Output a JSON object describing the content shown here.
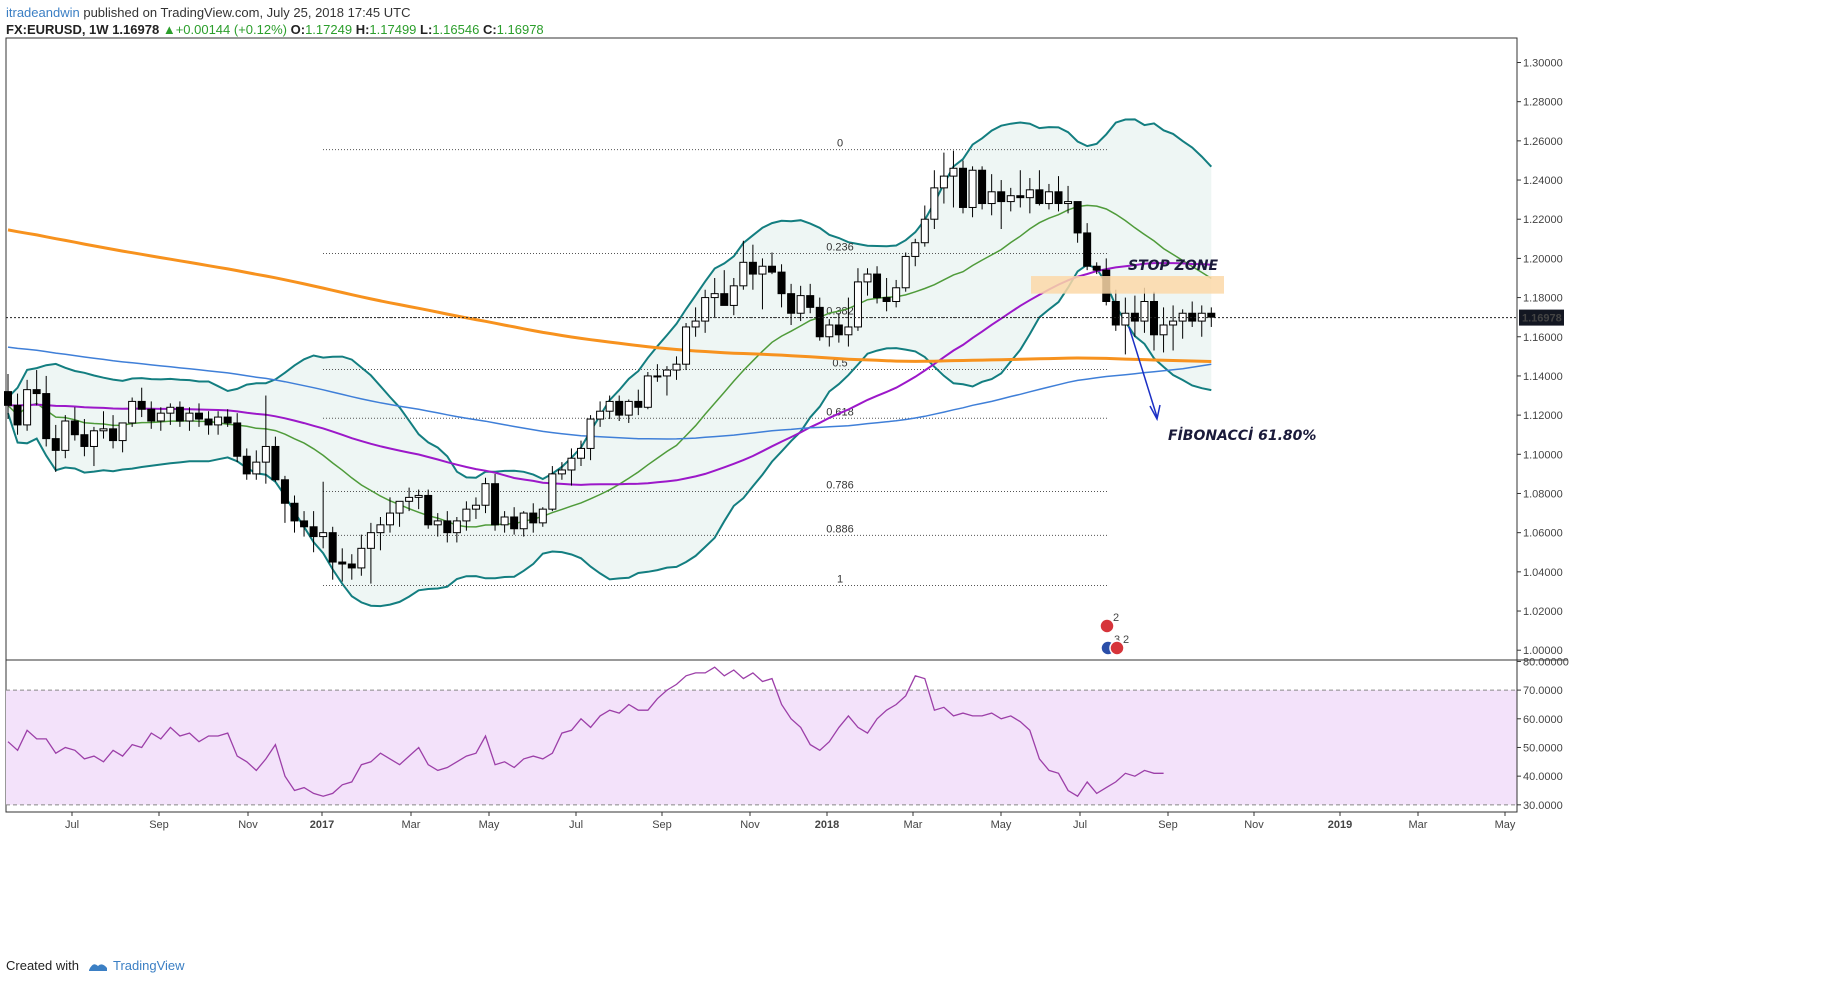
{
  "header": {
    "author": "itradeandwin",
    "published": "published on TradingView.com, July 25, 2018 17:45 UTC",
    "symbol": "FX:EURUSD, 1W",
    "last": "1.16978",
    "change": "+0.00144 (+0.12%)",
    "o_label": "O:",
    "o": "1.17249",
    "h_label": "H:",
    "h": "1.17499",
    "l_label": "L:",
    "l": "1.16546",
    "c_label": "C:",
    "c": "1.16978"
  },
  "footer": {
    "created": "Created with",
    "brand": "TradingView"
  },
  "colors": {
    "bull": "#ffffff",
    "bear": "#000000",
    "bb": "#137e80",
    "bb_fill": "#eef6f4",
    "sma_green": "#4f9b3a",
    "sma_purple": "#9c18c9",
    "sma_blue": "#3f7fd8",
    "sma_orange": "#f7921e",
    "rsi_line": "#9c3fa8",
    "rsi_band": "#f3e2fa",
    "stop_zone": "#fcd8a8",
    "arrow": "#1b2fc4",
    "price_tag": "#131722"
  },
  "chart_data": {
    "type": "candlestick",
    "title": "FX:EURUSD, 1W",
    "price_axis": {
      "ylim": [
        0.995,
        1.3125
      ],
      "ticks": [
        "1.30000",
        "1.28000",
        "1.26000",
        "1.24000",
        "1.22000",
        "1.20000",
        "1.18000",
        "1.16000",
        "1.14000",
        "1.12000",
        "1.10000",
        "1.08000",
        "1.06000",
        "1.04000",
        "1.02000",
        "1.00000"
      ]
    },
    "time_axis": {
      "labels": [
        "Jul",
        "Sep",
        "Nov",
        "2017",
        "Mar",
        "May",
        "Jul",
        "Sep",
        "Nov",
        "2018",
        "Mar",
        "May",
        "Jul",
        "Sep",
        "Nov",
        "2019",
        "Mar",
        "May"
      ]
    },
    "last_price": "1.16978",
    "candles": [
      {
        "o": 1.132,
        "h": 1.141,
        "l": 1.118,
        "c": 1.125
      },
      {
        "o": 1.125,
        "h": 1.131,
        "l": 1.11,
        "c": 1.115
      },
      {
        "o": 1.115,
        "h": 1.138,
        "l": 1.112,
        "c": 1.133
      },
      {
        "o": 1.133,
        "h": 1.143,
        "l": 1.125,
        "c": 1.131
      },
      {
        "o": 1.131,
        "h": 1.14,
        "l": 1.104,
        "c": 1.108
      },
      {
        "o": 1.108,
        "h": 1.115,
        "l": 1.091,
        "c": 1.102
      },
      {
        "o": 1.102,
        "h": 1.12,
        "l": 1.098,
        "c": 1.117
      },
      {
        "o": 1.117,
        "h": 1.124,
        "l": 1.107,
        "c": 1.11
      },
      {
        "o": 1.11,
        "h": 1.118,
        "l": 1.099,
        "c": 1.104
      },
      {
        "o": 1.104,
        "h": 1.114,
        "l": 1.094,
        "c": 1.112
      },
      {
        "o": 1.112,
        "h": 1.122,
        "l": 1.108,
        "c": 1.113
      },
      {
        "o": 1.113,
        "h": 1.12,
        "l": 1.103,
        "c": 1.107
      },
      {
        "o": 1.107,
        "h": 1.116,
        "l": 1.101,
        "c": 1.116
      },
      {
        "o": 1.116,
        "h": 1.129,
        "l": 1.114,
        "c": 1.127
      },
      {
        "o": 1.127,
        "h": 1.134,
        "l": 1.119,
        "c": 1.123
      },
      {
        "o": 1.123,
        "h": 1.127,
        "l": 1.113,
        "c": 1.117
      },
      {
        "o": 1.117,
        "h": 1.124,
        "l": 1.112,
        "c": 1.121
      },
      {
        "o": 1.121,
        "h": 1.126,
        "l": 1.115,
        "c": 1.124
      },
      {
        "o": 1.124,
        "h": 1.127,
        "l": 1.114,
        "c": 1.117
      },
      {
        "o": 1.117,
        "h": 1.124,
        "l": 1.112,
        "c": 1.121
      },
      {
        "o": 1.121,
        "h": 1.126,
        "l": 1.114,
        "c": 1.118
      },
      {
        "o": 1.118,
        "h": 1.122,
        "l": 1.11,
        "c": 1.115
      },
      {
        "o": 1.115,
        "h": 1.122,
        "l": 1.11,
        "c": 1.119
      },
      {
        "o": 1.119,
        "h": 1.123,
        "l": 1.114,
        "c": 1.116
      },
      {
        "o": 1.116,
        "h": 1.121,
        "l": 1.096,
        "c": 1.099
      },
      {
        "o": 1.099,
        "h": 1.103,
        "l": 1.087,
        "c": 1.09
      },
      {
        "o": 1.09,
        "h": 1.102,
        "l": 1.087,
        "c": 1.096
      },
      {
        "o": 1.096,
        "h": 1.13,
        "l": 1.085,
        "c": 1.104
      },
      {
        "o": 1.104,
        "h": 1.109,
        "l": 1.086,
        "c": 1.087
      },
      {
        "o": 1.087,
        "h": 1.089,
        "l": 1.065,
        "c": 1.075
      },
      {
        "o": 1.075,
        "h": 1.079,
        "l": 1.06,
        "c": 1.066
      },
      {
        "o": 1.066,
        "h": 1.071,
        "l": 1.058,
        "c": 1.063
      },
      {
        "o": 1.063,
        "h": 1.071,
        "l": 1.05,
        "c": 1.058
      },
      {
        "o": 1.058,
        "h": 1.086,
        "l": 1.052,
        "c": 1.06
      },
      {
        "o": 1.06,
        "h": 1.063,
        "l": 1.036,
        "c": 1.045
      },
      {
        "o": 1.045,
        "h": 1.052,
        "l": 1.035,
        "c": 1.044
      },
      {
        "o": 1.044,
        "h": 1.049,
        "l": 1.036,
        "c": 1.042
      },
      {
        "o": 1.042,
        "h": 1.059,
        "l": 1.038,
        "c": 1.052
      },
      {
        "o": 1.052,
        "h": 1.065,
        "l": 1.034,
        "c": 1.06
      },
      {
        "o": 1.06,
        "h": 1.068,
        "l": 1.051,
        "c": 1.064
      },
      {
        "o": 1.064,
        "h": 1.078,
        "l": 1.06,
        "c": 1.07
      },
      {
        "o": 1.07,
        "h": 1.076,
        "l": 1.063,
        "c": 1.076
      },
      {
        "o": 1.076,
        "h": 1.083,
        "l": 1.071,
        "c": 1.078
      },
      {
        "o": 1.078,
        "h": 1.082,
        "l": 1.072,
        "c": 1.079
      },
      {
        "o": 1.079,
        "h": 1.082,
        "l": 1.062,
        "c": 1.064
      },
      {
        "o": 1.064,
        "h": 1.07,
        "l": 1.058,
        "c": 1.066
      },
      {
        "o": 1.066,
        "h": 1.071,
        "l": 1.055,
        "c": 1.06
      },
      {
        "o": 1.06,
        "h": 1.068,
        "l": 1.055,
        "c": 1.066
      },
      {
        "o": 1.066,
        "h": 1.076,
        "l": 1.061,
        "c": 1.072
      },
      {
        "o": 1.072,
        "h": 1.078,
        "l": 1.067,
        "c": 1.074
      },
      {
        "o": 1.074,
        "h": 1.088,
        "l": 1.07,
        "c": 1.085
      },
      {
        "o": 1.085,
        "h": 1.09,
        "l": 1.061,
        "c": 1.064
      },
      {
        "o": 1.064,
        "h": 1.071,
        "l": 1.06,
        "c": 1.068
      },
      {
        "o": 1.068,
        "h": 1.073,
        "l": 1.059,
        "c": 1.062
      },
      {
        "o": 1.062,
        "h": 1.071,
        "l": 1.058,
        "c": 1.07
      },
      {
        "o": 1.07,
        "h": 1.075,
        "l": 1.06,
        "c": 1.065
      },
      {
        "o": 1.065,
        "h": 1.073,
        "l": 1.063,
        "c": 1.072
      },
      {
        "o": 1.072,
        "h": 1.094,
        "l": 1.071,
        "c": 1.09
      },
      {
        "o": 1.09,
        "h": 1.096,
        "l": 1.087,
        "c": 1.092
      },
      {
        "o": 1.092,
        "h": 1.103,
        "l": 1.084,
        "c": 1.098
      },
      {
        "o": 1.098,
        "h": 1.107,
        "l": 1.094,
        "c": 1.103
      },
      {
        "o": 1.103,
        "h": 1.12,
        "l": 1.097,
        "c": 1.118
      },
      {
        "o": 1.118,
        "h": 1.127,
        "l": 1.114,
        "c": 1.122
      },
      {
        "o": 1.122,
        "h": 1.13,
        "l": 1.118,
        "c": 1.127
      },
      {
        "o": 1.127,
        "h": 1.13,
        "l": 1.117,
        "c": 1.12
      },
      {
        "o": 1.12,
        "h": 1.128,
        "l": 1.116,
        "c": 1.127
      },
      {
        "o": 1.127,
        "h": 1.133,
        "l": 1.12,
        "c": 1.124
      },
      {
        "o": 1.124,
        "h": 1.142,
        "l": 1.123,
        "c": 1.14
      },
      {
        "o": 1.14,
        "h": 1.146,
        "l": 1.137,
        "c": 1.14
      },
      {
        "o": 1.14,
        "h": 1.145,
        "l": 1.13,
        "c": 1.143
      },
      {
        "o": 1.143,
        "h": 1.15,
        "l": 1.138,
        "c": 1.146
      },
      {
        "o": 1.146,
        "h": 1.167,
        "l": 1.143,
        "c": 1.165
      },
      {
        "o": 1.165,
        "h": 1.175,
        "l": 1.16,
        "c": 1.168
      },
      {
        "o": 1.168,
        "h": 1.184,
        "l": 1.162,
        "c": 1.18
      },
      {
        "o": 1.18,
        "h": 1.19,
        "l": 1.17,
        "c": 1.182
      },
      {
        "o": 1.182,
        "h": 1.194,
        "l": 1.178,
        "c": 1.176
      },
      {
        "o": 1.176,
        "h": 1.19,
        "l": 1.171,
        "c": 1.186
      },
      {
        "o": 1.186,
        "h": 1.209,
        "l": 1.184,
        "c": 1.198
      },
      {
        "o": 1.198,
        "h": 1.207,
        "l": 1.184,
        "c": 1.192
      },
      {
        "o": 1.192,
        "h": 1.2,
        "l": 1.174,
        "c": 1.196
      },
      {
        "o": 1.196,
        "h": 1.203,
        "l": 1.192,
        "c": 1.193
      },
      {
        "o": 1.193,
        "h": 1.197,
        "l": 1.175,
        "c": 1.182
      },
      {
        "o": 1.182,
        "h": 1.187,
        "l": 1.166,
        "c": 1.172
      },
      {
        "o": 1.172,
        "h": 1.186,
        "l": 1.168,
        "c": 1.181
      },
      {
        "o": 1.181,
        "h": 1.187,
        "l": 1.172,
        "c": 1.175
      },
      {
        "o": 1.175,
        "h": 1.18,
        "l": 1.158,
        "c": 1.16
      },
      {
        "o": 1.16,
        "h": 1.169,
        "l": 1.155,
        "c": 1.166
      },
      {
        "o": 1.166,
        "h": 1.172,
        "l": 1.157,
        "c": 1.161
      },
      {
        "o": 1.161,
        "h": 1.18,
        "l": 1.155,
        "c": 1.165
      },
      {
        "o": 1.165,
        "h": 1.195,
        "l": 1.163,
        "c": 1.188
      },
      {
        "o": 1.188,
        "h": 1.195,
        "l": 1.181,
        "c": 1.192
      },
      {
        "o": 1.192,
        "h": 1.196,
        "l": 1.177,
        "c": 1.18
      },
      {
        "o": 1.18,
        "h": 1.19,
        "l": 1.173,
        "c": 1.178
      },
      {
        "o": 1.178,
        "h": 1.189,
        "l": 1.175,
        "c": 1.185
      },
      {
        "o": 1.185,
        "h": 1.203,
        "l": 1.183,
        "c": 1.201
      },
      {
        "o": 1.201,
        "h": 1.21,
        "l": 1.196,
        "c": 1.208
      },
      {
        "o": 1.208,
        "h": 1.227,
        "l": 1.206,
        "c": 1.22
      },
      {
        "o": 1.22,
        "h": 1.245,
        "l": 1.215,
        "c": 1.236
      },
      {
        "o": 1.236,
        "h": 1.254,
        "l": 1.228,
        "c": 1.242
      },
      {
        "o": 1.242,
        "h": 1.255,
        "l": 1.226,
        "c": 1.246
      },
      {
        "o": 1.246,
        "h": 1.25,
        "l": 1.223,
        "c": 1.226
      },
      {
        "o": 1.226,
        "h": 1.247,
        "l": 1.221,
        "c": 1.245
      },
      {
        "o": 1.245,
        "h": 1.247,
        "l": 1.225,
        "c": 1.228
      },
      {
        "o": 1.228,
        "h": 1.243,
        "l": 1.222,
        "c": 1.234
      },
      {
        "o": 1.234,
        "h": 1.24,
        "l": 1.215,
        "c": 1.229
      },
      {
        "o": 1.229,
        "h": 1.236,
        "l": 1.224,
        "c": 1.232
      },
      {
        "o": 1.232,
        "h": 1.245,
        "l": 1.226,
        "c": 1.231
      },
      {
        "o": 1.231,
        "h": 1.241,
        "l": 1.223,
        "c": 1.235
      },
      {
        "o": 1.235,
        "h": 1.245,
        "l": 1.227,
        "c": 1.228
      },
      {
        "o": 1.228,
        "h": 1.238,
        "l": 1.225,
        "c": 1.234
      },
      {
        "o": 1.234,
        "h": 1.242,
        "l": 1.224,
        "c": 1.228
      },
      {
        "o": 1.228,
        "h": 1.237,
        "l": 1.223,
        "c": 1.229
      },
      {
        "o": 1.229,
        "h": 1.229,
        "l": 1.208,
        "c": 1.213
      },
      {
        "o": 1.213,
        "h": 1.218,
        "l": 1.194,
        "c": 1.196
      },
      {
        "o": 1.196,
        "h": 1.198,
        "l": 1.192,
        "c": 1.194
      },
      {
        "o": 1.194,
        "h": 1.2,
        "l": 1.176,
        "c": 1.178
      },
      {
        "o": 1.178,
        "h": 1.184,
        "l": 1.163,
        "c": 1.166
      },
      {
        "o": 1.166,
        "h": 1.18,
        "l": 1.151,
        "c": 1.172
      },
      {
        "o": 1.172,
        "h": 1.181,
        "l": 1.16,
        "c": 1.168
      },
      {
        "o": 1.168,
        "h": 1.185,
        "l": 1.162,
        "c": 1.178
      },
      {
        "o": 1.178,
        "h": 1.183,
        "l": 1.153,
        "c": 1.161
      },
      {
        "o": 1.161,
        "h": 1.175,
        "l": 1.152,
        "c": 1.166
      },
      {
        "o": 1.166,
        "h": 1.176,
        "l": 1.153,
        "c": 1.168
      },
      {
        "o": 1.168,
        "h": 1.174,
        "l": 1.159,
        "c": 1.172
      },
      {
        "o": 1.172,
        "h": 1.178,
        "l": 1.165,
        "c": 1.168
      },
      {
        "o": 1.168,
        "h": 1.176,
        "l": 1.16,
        "c": 1.172
      },
      {
        "o": 1.172,
        "h": 1.175,
        "l": 1.165,
        "c": 1.17
      }
    ],
    "fibonacci": {
      "levels": [
        {
          "label": "0",
          "price": 1.2555
        },
        {
          "label": "0.236",
          "price": 1.2025
        },
        {
          "label": "0.382",
          "price": 1.1698
        },
        {
          "label": "0.5",
          "price": 1.1433
        },
        {
          "label": "0.618",
          "price": 1.1184
        },
        {
          "label": "0.786",
          "price": 1.081
        },
        {
          "label": "0.886",
          "price": 1.0586
        },
        {
          "label": "1",
          "price": 1.033
        }
      ]
    },
    "annotations": [
      {
        "text": "STOP ZONE",
        "zone": [
          1.182,
          1.191
        ]
      },
      {
        "text": "FİBONACCİ 61.80%"
      }
    ],
    "rsi": {
      "ylim": [
        27.5,
        80.5
      ],
      "ticks": [
        "80.00000",
        "70.0000",
        "60.0000",
        "50.0000",
        "40.0000",
        "30.0000"
      ],
      "band": [
        30,
        70
      ],
      "values": [
        52,
        49,
        56,
        53,
        53,
        48,
        50,
        49,
        46,
        47,
        45,
        49,
        47,
        51,
        50,
        55,
        53,
        57,
        54,
        55,
        52,
        54,
        54,
        55,
        47,
        45,
        42,
        46,
        51,
        40,
        35,
        36,
        34,
        33,
        34,
        37,
        38,
        44,
        45,
        48,
        46,
        44,
        47,
        50,
        44,
        42,
        43,
        45,
        47,
        48,
        54,
        44,
        45,
        43,
        46,
        47,
        46,
        48,
        55,
        56,
        60,
        57,
        61,
        63,
        62,
        65,
        63,
        63,
        67,
        70,
        72,
        75,
        76,
        76,
        78,
        75,
        77,
        74,
        76,
        73,
        74,
        65,
        60,
        57,
        51,
        49,
        52,
        57,
        61,
        57,
        55,
        60,
        63,
        65,
        68,
        75,
        74,
        63,
        64,
        61,
        62,
        61,
        61,
        62,
        60,
        61,
        59,
        56,
        46,
        42,
        41,
        35,
        33,
        38,
        34,
        36,
        38,
        41,
        40,
        42,
        41,
        41
      ]
    }
  },
  "badges": [
    {
      "flag": "US",
      "count": "2"
    },
    {
      "flag": "EU",
      "count": "3"
    },
    {
      "flag": "US",
      "count": "2"
    }
  ]
}
